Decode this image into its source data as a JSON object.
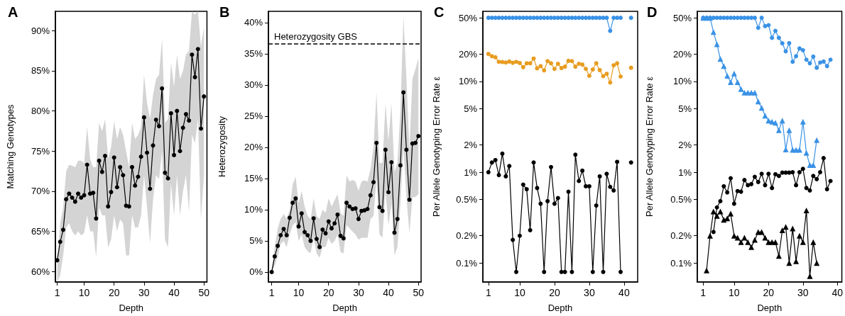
{
  "chart_data": [
    {
      "type": "line",
      "title": "A",
      "xlabel": "Depth",
      "ylabel": "Matching Genotypes",
      "marker": "circle",
      "line_style": "solid",
      "grid": false,
      "xlim": [
        0.4,
        51
      ],
      "xticks": [
        1,
        10,
        20,
        30,
        40,
        50
      ],
      "ylim": [
        58.7,
        92.4
      ],
      "yticks": [
        {
          "value": 60,
          "label": "60%"
        },
        {
          "value": 65,
          "label": "65%"
        },
        {
          "value": 70,
          "label": "70%"
        },
        {
          "value": 75,
          "label": "75%"
        },
        {
          "value": 80,
          "label": "80%"
        },
        {
          "value": 85,
          "label": "85%"
        },
        {
          "value": 90,
          "label": "90%"
        }
      ],
      "x": [
        1,
        2,
        3,
        4,
        5,
        6,
        7,
        8,
        9,
        10,
        11,
        12,
        13,
        14,
        15,
        16,
        17,
        18,
        19,
        20,
        21,
        22,
        23,
        24,
        25,
        26,
        27,
        28,
        29,
        30,
        31,
        32,
        33,
        34,
        35,
        36,
        37,
        38,
        39,
        40,
        41,
        42,
        43,
        44,
        45,
        46,
        47,
        48,
        49,
        50
      ],
      "series": [
        {
          "color": "#000000",
          "values": [
            61.4,
            63.7,
            65.2,
            69.0,
            69.7,
            69.2,
            68.7,
            69.7,
            69.2,
            69.5,
            73.3,
            69.7,
            69.8,
            66.6,
            73.8,
            72.4,
            74.4,
            68.1,
            69.9,
            74.2,
            70.5,
            73.0,
            72.0,
            68.2,
            68.1,
            73.0,
            70.7,
            71.8,
            74.3,
            79.2,
            74.8,
            70.3,
            75.7,
            78.9,
            78.1,
            82.8,
            72.3,
            71.6,
            79.7,
            74.5,
            80.0,
            75.0,
            77.9,
            79.6,
            78.8,
            87.0,
            84.2,
            87.7,
            77.8,
            81.8
          ],
          "lower": [
            58.7,
            59.5,
            62,
            65.5,
            66,
            65,
            64.5,
            65,
            64.5,
            64.8,
            67,
            65,
            65,
            61.8,
            68,
            67,
            67,
            63,
            64,
            67,
            65,
            66.5,
            66,
            62,
            62,
            67,
            65.5,
            65.5,
            67,
            72,
            68,
            63.5,
            69,
            72,
            71.5,
            75,
            64,
            63,
            71,
            67,
            72,
            67,
            70,
            72,
            67.5,
            77,
            76,
            79,
            66.5,
            72
          ],
          "upper": [
            61,
            66,
            68,
            72.5,
            73.3,
            73.2,
            73,
            73.8,
            73.8,
            73.5,
            78,
            74,
            73,
            73,
            78.5,
            77.5,
            79,
            74,
            75.5,
            78.7,
            76.5,
            78,
            77,
            75,
            73,
            78.5,
            76.5,
            77,
            78,
            84.5,
            81,
            79,
            82,
            84,
            84.5,
            89,
            78.5,
            79,
            86,
            83,
            87,
            84,
            85,
            87,
            87.5,
            92.4,
            92,
            92.4,
            88,
            90.5
          ]
        }
      ]
    },
    {
      "type": "line",
      "title": "B",
      "xlabel": "Depth",
      "ylabel": "Heterozygosity",
      "marker": "circle",
      "line_style": "solid",
      "grid": false,
      "xlim": [
        -0.1,
        50.9
      ],
      "xticks": [
        1,
        10,
        20,
        30,
        40,
        50
      ],
      "ylim": [
        -1.6,
        41.8
      ],
      "yticks": [
        {
          "value": 0,
          "label": "0%"
        },
        {
          "value": 5,
          "label": "5%"
        },
        {
          "value": 10,
          "label": "10%"
        },
        {
          "value": 15,
          "label": "15%"
        },
        {
          "value": 20,
          "label": "20%"
        },
        {
          "value": 25,
          "label": "25%"
        },
        {
          "value": 30,
          "label": "30%"
        },
        {
          "value": 35,
          "label": "35%"
        },
        {
          "value": 40,
          "label": "40%"
        }
      ],
      "ref_lines": [
        {
          "axis": "y",
          "value": 36.6,
          "label": "Heterozygosity GBS",
          "color": "#000000",
          "line_style": "dashed"
        }
      ],
      "x": [
        1,
        2,
        3,
        4,
        5,
        6,
        7,
        8,
        9,
        10,
        11,
        12,
        13,
        14,
        15,
        16,
        17,
        18,
        19,
        20,
        21,
        22,
        23,
        24,
        25,
        26,
        27,
        28,
        29,
        30,
        31,
        32,
        33,
        34,
        35,
        36,
        37,
        38,
        39,
        40,
        41,
        42,
        43,
        44,
        45,
        46,
        47,
        48,
        49,
        50
      ],
      "series": [
        {
          "color": "#000000",
          "values": [
            0,
            2.5,
            4.2,
            5.9,
            6.9,
            5.9,
            8.7,
            11.1,
            11.8,
            7.3,
            9.4,
            6.4,
            5.9,
            5.0,
            8.6,
            5.3,
            4.0,
            6.8,
            6.2,
            8.1,
            7.0,
            7.8,
            9.2,
            5.8,
            5.4,
            11.1,
            10.5,
            10.1,
            10.2,
            8.5,
            9.8,
            9.9,
            10.1,
            12.3,
            14.4,
            20.7,
            10.4,
            9.8,
            19.6,
            12.8,
            17.6,
            6.3,
            8.5,
            17.1,
            28.8,
            19.6,
            11.6,
            20.6,
            20.7,
            21.8
          ],
          "lower": [
            0,
            1,
            2.5,
            4.5,
            5,
            4,
            6,
            7.5,
            8,
            5,
            6,
            4,
            3.3,
            3,
            5.5,
            3,
            2.3,
            4,
            4,
            5.5,
            4.5,
            5,
            6,
            3.2,
            3,
            7.5,
            7,
            6.5,
            6,
            5.2,
            5.5,
            5.5,
            5.5,
            8.5,
            9,
            15,
            6,
            5.5,
            13,
            7.5,
            11,
            2.7,
            4,
            11,
            20,
            12,
            6.2,
            12,
            12,
            12.5
          ],
          "upper": [
            0.5,
            4,
            7,
            8.5,
            9.3,
            8.5,
            10,
            14,
            15.3,
            11,
            13,
            10.5,
            9,
            8.5,
            11.8,
            9,
            8.5,
            10,
            9.5,
            11.8,
            10.5,
            11.5,
            12.5,
            9.5,
            9,
            15.5,
            14.5,
            14.8,
            14.5,
            13,
            14.5,
            14.7,
            14.5,
            16.5,
            20,
            28.8,
            17.5,
            17.5,
            27,
            21,
            27,
            16,
            17.5,
            26,
            41,
            31,
            19.5,
            31,
            32.5,
            34.3
          ]
        }
      ]
    },
    {
      "type": "line",
      "title": "C",
      "xlabel": "Depth",
      "ylabel": "Per Allele Genotyping Error Rate ε",
      "marker": "circle",
      "line_style": "solid",
      "grid": false,
      "log": "y",
      "xlim": [
        -0.6,
        43.9
      ],
      "xticks": [
        1,
        10,
        20,
        30,
        40
      ],
      "ylim": [
        0.062,
        58.9
      ],
      "yticks": [
        {
          "value": 0.1,
          "label": "0.1%"
        },
        {
          "value": 0.2,
          "label": "0.2%"
        },
        {
          "value": 0.5,
          "label": "0.5%"
        },
        {
          "value": 1,
          "label": "1%"
        },
        {
          "value": 2,
          "label": "2%"
        },
        {
          "value": 5,
          "label": "5%"
        },
        {
          "value": 10,
          "label": "10%"
        },
        {
          "value": 20,
          "label": "20%"
        },
        {
          "value": 50,
          "label": "50%"
        }
      ],
      "x": [
        1,
        2,
        3,
        4,
        5,
        6,
        7,
        8,
        9,
        10,
        11,
        12,
        13,
        14,
        15,
        16,
        17,
        18,
        19,
        20,
        21,
        22,
        23,
        24,
        25,
        26,
        27,
        28,
        29,
        30,
        31,
        32,
        33,
        34,
        35,
        36,
        37,
        38,
        39,
        40,
        41,
        42
      ],
      "series": [
        {
          "color": "#3a92e6",
          "values": [
            50,
            50,
            50,
            50,
            50,
            50,
            50,
            50,
            50,
            50,
            50,
            50,
            50,
            50,
            50,
            50,
            50,
            50,
            50,
            50,
            50,
            50,
            50,
            50,
            50,
            50,
            50,
            50,
            50,
            50,
            50,
            50,
            50,
            50,
            50,
            35.9,
            50,
            50,
            50,
            null,
            null,
            50
          ]
        },
        {
          "color": "#e89c20",
          "values": [
            20.0,
            18.9,
            18.4,
            16.4,
            16.3,
            16.1,
            16.5,
            16.0,
            16.4,
            15.9,
            14.3,
            15.8,
            15.8,
            17.8,
            13.9,
            14.7,
            13.2,
            16.7,
            15.8,
            13.7,
            15.6,
            14.0,
            14.5,
            16.8,
            16.7,
            14.5,
            15.6,
            15.3,
            13.7,
            11.5,
            13.5,
            15.8,
            13.3,
            11.4,
            12.1,
            9.7,
            15.0,
            15.8,
            11.3,
            null,
            null,
            14.1
          ]
        },
        {
          "color": "#000000",
          "values": [
            1.0,
            1.28,
            1.36,
            0.93,
            1.6,
            0.9,
            1.17,
            0.18,
            0.08,
            0.2,
            0.73,
            0.65,
            0.23,
            1.28,
            0.67,
            0.45,
            0.08,
            0.48,
            1.14,
            0.45,
            0.52,
            0.08,
            0.08,
            0.61,
            0.08,
            1.56,
            0.8,
            1.04,
            0.7,
            0.7,
            0.08,
            0.43,
            0.9,
            0.08,
            0.96,
            0.69,
            0.63,
            1.3,
            0.08,
            null,
            null,
            1.28
          ]
        }
      ]
    },
    {
      "type": "line",
      "title": "D",
      "xlabel": "Depth",
      "ylabel": "Per Allele Genotyping Error Rate ε",
      "marker": "circle",
      "line_style": "solid",
      "grid": false,
      "log": "y",
      "xlim": [
        -0.7,
        41.3
      ],
      "xticks": [
        1,
        10,
        20,
        30,
        40
      ],
      "ylim": [
        0.062,
        58.9
      ],
      "yticks": [
        {
          "value": 0.1,
          "label": "0.1%"
        },
        {
          "value": 0.2,
          "label": "0.2%"
        },
        {
          "value": 0.5,
          "label": "0.5%"
        },
        {
          "value": 1,
          "label": "1%"
        },
        {
          "value": 2,
          "label": "2%"
        },
        {
          "value": 5,
          "label": "5%"
        },
        {
          "value": 10,
          "label": "10%"
        },
        {
          "value": 20,
          "label": "20%"
        },
        {
          "value": 50,
          "label": "50%"
        }
      ],
      "x": [
        1,
        2,
        3,
        4,
        5,
        6,
        7,
        8,
        9,
        10,
        11,
        12,
        13,
        14,
        15,
        16,
        17,
        18,
        19,
        20,
        21,
        22,
        23,
        24,
        25,
        26,
        27,
        28,
        29,
        30,
        31,
        32,
        33,
        34,
        35,
        36,
        37,
        38
      ],
      "series": [
        {
          "color": "#3a92e6",
          "values": [
            50,
            50,
            50,
            50,
            50,
            50,
            50,
            50,
            50,
            50,
            50,
            50,
            50,
            50,
            50,
            50,
            38.8,
            50,
            40.5,
            41.5,
            30.1,
            35.9,
            30.1,
            26.2,
            21.4,
            26.3,
            16.4,
            18.9,
            23.0,
            22.0,
            17.3,
            15.8,
            18.7,
            14.1,
            16.1,
            16.5,
            14.7,
            17.3
          ]
        },
        {
          "color": "#3a92e6",
          "marker": "triangle",
          "values": [
            50,
            50,
            50,
            34.9,
            25.6,
            17.6,
            14.7,
            11.5,
            9.8,
            12.2,
            9.8,
            8.2,
            7.5,
            7.5,
            7.5,
            7.5,
            6.0,
            5.1,
            4.2,
            3.7,
            3.6,
            3.5,
            2.9,
            3.7,
            1.78,
            2.9,
            1.76,
            1.76,
            1.76,
            3.6,
            1.63,
            1.2,
            1.2,
            2.26,
            null,
            null,
            null,
            null
          ]
        },
        {
          "color": "#000000",
          "values": [
            null,
            null,
            null,
            0.22,
            0.41,
            0.48,
            0.7,
            0.6,
            0.86,
            0.45,
            0.62,
            0.61,
            0.82,
            0.72,
            0.74,
            0.89,
            0.78,
            0.96,
            0.72,
            0.96,
            0.67,
            0.95,
            0.91,
            0.99,
            0.99,
            0.99,
            1.0,
            0.72,
            1.0,
            1.09,
            0.67,
            0.63,
            0.91,
            0.84,
            1.0,
            1.43,
            0.65,
            0.8
          ]
        },
        {
          "color": "#000000",
          "marker": "triangle",
          "values": [
            null,
            0.083,
            0.2,
            0.37,
            0.33,
            0.37,
            0.3,
            0.31,
            0.35,
            0.2,
            0.19,
            0.17,
            0.19,
            0.17,
            0.15,
            0.18,
            0.22,
            0.22,
            0.19,
            0.17,
            0.17,
            0.17,
            0.12,
            0.23,
            0.25,
            0.1,
            0.24,
            0.105,
            0.2,
            0.17,
            0.38,
            0.072,
            0.17,
            0.1,
            null,
            null,
            null,
            null
          ]
        }
      ]
    }
  ]
}
